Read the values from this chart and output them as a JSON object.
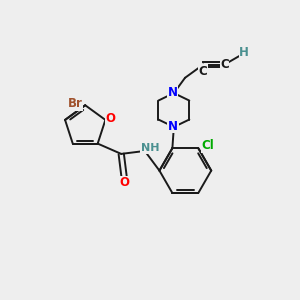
{
  "bg_color": "#eeeeee",
  "C": "#1a1a1a",
  "N": "#0000ff",
  "O": "#ff0000",
  "Br": "#a0522d",
  "Cl": "#00aa00",
  "H": "#4a9090",
  "lw": 1.4,
  "fs": 8.5
}
